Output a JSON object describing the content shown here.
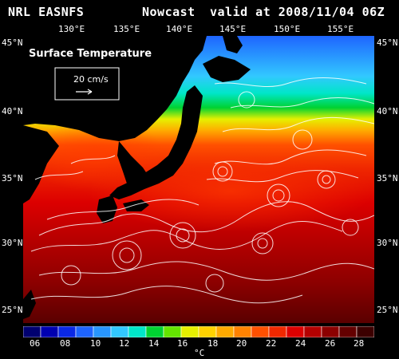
{
  "header": {
    "source": "NRL EASNFS",
    "product": "Nowcast",
    "valid": "valid at 2008/11/04 06Z"
  },
  "longitude_labels": [
    "130°E",
    "135°E",
    "140°E",
    "145°E",
    "150°E",
    "155°E"
  ],
  "latitude_labels": [
    "45°N",
    "40°N",
    "35°N",
    "30°N",
    "25°N"
  ],
  "field_title": "Surface Temperature",
  "vector_reference": "20 cm/s",
  "colorbar": {
    "ticks": [
      "06",
      "08",
      "10",
      "12",
      "14",
      "16",
      "18",
      "20",
      "22",
      "24",
      "26",
      "28"
    ],
    "unit": "°C",
    "colors": [
      "#000070",
      "#0000b0",
      "#0a28e6",
      "#1e64ff",
      "#2896ff",
      "#32c8ff",
      "#00e6c8",
      "#00d232",
      "#64e600",
      "#e6f000",
      "#ffd200",
      "#ffaa00",
      "#ff8200",
      "#ff5000",
      "#f02800",
      "#dc0000",
      "#b40000",
      "#8c0000",
      "#640000",
      "#3c0000"
    ]
  }
}
